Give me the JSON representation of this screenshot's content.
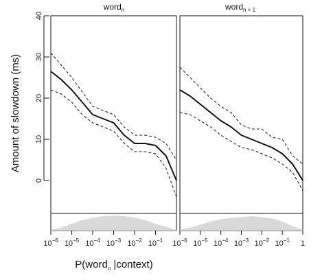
{
  "chart_data": {
    "type": "line",
    "ylabel": "Amount of slowdown (ms)",
    "xlabel": {
      "prefix": "P(word",
      "sub": "n",
      "suffix": " |context)"
    },
    "scale_x": "log10",
    "yticks": [
      0,
      10,
      20,
      30,
      40
    ],
    "ylim": [
      -8,
      40
    ],
    "panels": [
      {
        "title": {
          "main": "word",
          "sub": "n"
        },
        "xlim": [
          -6,
          0
        ],
        "xtick_labels": [
          {
            "base": "10",
            "exp": "−6"
          },
          {
            "base": "10",
            "exp": "−5"
          },
          {
            "base": "10",
            "exp": "−4"
          },
          {
            "base": "10",
            "exp": "−3"
          },
          {
            "base": "10",
            "exp": "−2"
          },
          {
            "base": "10",
            "exp": "−1"
          }
        ],
        "series": [
          {
            "style": "solid",
            "x": [
              -6,
              -5.5,
              -5,
              -4.5,
              -4,
              -3.5,
              -3,
              -2.5,
              -2,
              -1.5,
              -1,
              -0.5,
              0
            ],
            "y": [
              26.5,
              24.5,
              22,
              19,
              16,
              15,
              14,
              11,
              9,
              9,
              8.5,
              6,
              0
            ]
          },
          {
            "style": "dashed",
            "x": [
              -6,
              -5.5,
              -5,
              -4.5,
              -4,
              -3.5,
              -3,
              -2.5,
              -2,
              -1.5,
              -1,
              -0.5,
              0
            ],
            "y": [
              31,
              28,
              25,
              21.5,
              18,
              17,
              16,
              13,
              11,
              11,
              10.5,
              9,
              5
            ]
          },
          {
            "style": "dashed",
            "x": [
              -6,
              -5.5,
              -5,
              -4.5,
              -4,
              -3.5,
              -3,
              -2.5,
              -2,
              -1.5,
              -1,
              -0.5,
              0
            ],
            "y": [
              22,
              21,
              19,
              16,
              14,
              13,
              12,
              9,
              7,
              7,
              6.5,
              3,
              -4
            ]
          }
        ],
        "density": [
          0.05,
          0.2,
          0.45,
          0.7,
          0.85,
          0.95,
          1.0,
          0.95,
          0.85,
          0.7,
          0.45,
          0.25,
          0.05
        ]
      },
      {
        "title": {
          "main": "word",
          "sub": "n + 1"
        },
        "xlim": [
          -6,
          0
        ],
        "xtick_labels": [
          {
            "base": "10",
            "exp": "−6"
          },
          {
            "base": "10",
            "exp": "−5"
          },
          {
            "base": "10",
            "exp": "−4"
          },
          {
            "base": "10",
            "exp": "−3"
          },
          {
            "base": "10",
            "exp": "−2"
          },
          {
            "base": "10",
            "exp": "−1"
          },
          {
            "base": "1",
            "exp": ""
          }
        ],
        "series": [
          {
            "style": "solid",
            "x": [
              -6,
              -5.5,
              -5,
              -4.5,
              -4,
              -3.5,
              -3,
              -2.5,
              -2,
              -1.5,
              -1,
              -0.5,
              0
            ],
            "y": [
              22,
              20.5,
              18.5,
              16.5,
              14.5,
              13,
              11,
              10,
              9,
              8,
              6.5,
              4,
              0
            ]
          },
          {
            "style": "dashed",
            "x": [
              -6,
              -5.5,
              -5,
              -4.5,
              -4,
              -3.5,
              -3,
              -2.5,
              -2,
              -1.5,
              -1,
              -0.5,
              0
            ],
            "y": [
              27.5,
              25,
              22.5,
              20,
              18,
              16.5,
              13.5,
              12.5,
              12.5,
              10.5,
              10,
              6,
              4
            ]
          },
          {
            "style": "dashed",
            "x": [
              -6,
              -5.5,
              -5,
              -4.5,
              -4,
              -3.5,
              -3,
              -2.5,
              -2,
              -1.5,
              -1,
              -0.5,
              0
            ],
            "y": [
              16.5,
              16,
              14.5,
              13,
              11,
              9.5,
              8,
              7.5,
              6.5,
              5.5,
              4,
              2,
              -2.5
            ]
          }
        ],
        "density": [
          0.05,
          0.2,
          0.4,
          0.6,
          0.75,
          0.85,
          0.9,
          0.95,
          0.9,
          0.8,
          0.6,
          0.3,
          0.05
        ]
      }
    ]
  }
}
